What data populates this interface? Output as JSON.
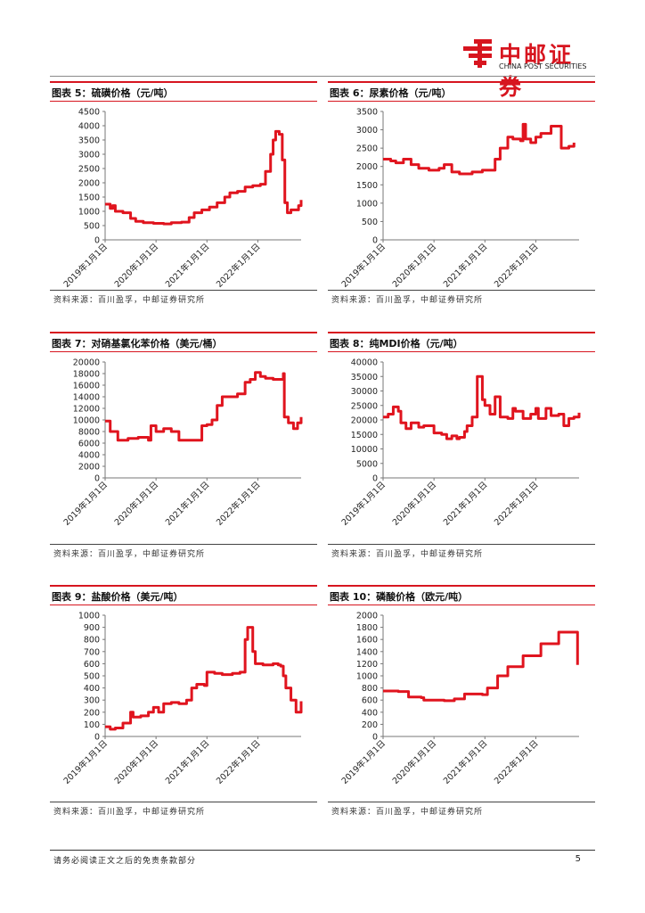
{
  "header": {
    "logo_cn": "中邮证券",
    "logo_en": "CHINA POST SECURITIES",
    "brand_color": "#d7151f"
  },
  "footer": {
    "disclaimer": "请务必阅读正文之后的免责条款部分",
    "page_number": "5"
  },
  "line_color": "#e0141e",
  "charts": [
    {
      "title": "图表 5：硫磺价格（元/吨）",
      "source": "资料来源：百川盈孚，中邮证券研究所",
      "chart_data": {
        "type": "line",
        "ylim": [
          0,
          4500
        ],
        "yticks": [
          0,
          500,
          1000,
          1500,
          2000,
          2500,
          3000,
          3500,
          4000,
          4500
        ],
        "xlim": [
          2019.0,
          2022.85
        ],
        "xticks": [
          2019.0,
          2020.0,
          2021.0,
          2022.0
        ],
        "xtick_labels": [
          "2019年1月1日",
          "2020年1月1日",
          "2021年1月1日",
          "2022年1月1日"
        ],
        "x": [
          2019.0,
          2019.1,
          2019.15,
          2019.2,
          2019.35,
          2019.5,
          2019.6,
          2019.75,
          2019.95,
          2020.15,
          2020.3,
          2020.5,
          2020.65,
          2020.75,
          2020.9,
          2021.05,
          2021.2,
          2021.35,
          2021.45,
          2021.6,
          2021.75,
          2021.9,
          2022.05,
          2022.15,
          2022.25,
          2022.3,
          2022.35,
          2022.42,
          2022.48,
          2022.53,
          2022.58,
          2022.65,
          2022.8,
          2022.85
        ],
        "y": [
          1250,
          1100,
          1200,
          1000,
          950,
          750,
          650,
          600,
          580,
          560,
          600,
          620,
          780,
          950,
          1050,
          1150,
          1300,
          1500,
          1650,
          1700,
          1850,
          1900,
          1950,
          2400,
          3000,
          3500,
          3800,
          3700,
          2800,
          1300,
          950,
          1050,
          1200,
          1400
        ]
      }
    },
    {
      "title": "图表 6：尿素价格（元/吨）",
      "source": "资料来源：百川盈孚，中邮证券研究所",
      "chart_data": {
        "type": "line",
        "ylim": [
          0,
          3500
        ],
        "yticks": [
          0,
          500,
          1000,
          1500,
          2000,
          2500,
          3000,
          3500
        ],
        "xlim": [
          2019.0,
          2022.85
        ],
        "xticks": [
          2019.0,
          2020.0,
          2021.0,
          2022.0
        ],
        "xtick_labels": [
          "2019年1月1日",
          "2020年1月1日",
          "2021年1月1日",
          "2022年1月1日"
        ],
        "x": [
          2019.0,
          2019.15,
          2019.25,
          2019.4,
          2019.55,
          2019.7,
          2019.9,
          2020.1,
          2020.2,
          2020.35,
          2020.5,
          2020.75,
          2020.95,
          2021.1,
          2021.2,
          2021.3,
          2021.45,
          2021.55,
          2021.7,
          2021.75,
          2021.8,
          2021.9,
          2022.0,
          2022.1,
          2022.3,
          2022.45,
          2022.5,
          2022.65,
          2022.75
        ],
        "y": [
          2200,
          2150,
          2100,
          2200,
          2050,
          1950,
          1900,
          1950,
          2050,
          1850,
          1800,
          1850,
          1900,
          1900,
          2200,
          2500,
          2800,
          2750,
          2700,
          3150,
          2750,
          2650,
          2800,
          2900,
          3100,
          3100,
          2500,
          2550,
          2650
        ]
      }
    },
    {
      "title": "图表 7：对硝基氯化苯价格（美元/桶）",
      "source": "资料来源：百川盈孚，中邮证券研究所",
      "chart_data": {
        "type": "line",
        "ylim": [
          0,
          20000
        ],
        "yticks": [
          0,
          2000,
          4000,
          6000,
          8000,
          10000,
          12000,
          14000,
          16000,
          18000,
          20000
        ],
        "xlim": [
          2019.0,
          2022.85
        ],
        "xticks": [
          2019.0,
          2020.0,
          2021.0,
          2022.0
        ],
        "xtick_labels": [
          "2019年1月1日",
          "2020年1月1日",
          "2021年1月1日",
          "2022年1月1日"
        ],
        "x": [
          2019.0,
          2019.1,
          2019.25,
          2019.45,
          2019.65,
          2019.85,
          2019.9,
          2020.0,
          2020.15,
          2020.3,
          2020.45,
          2020.55,
          2020.75,
          2020.9,
          2021.0,
          2021.1,
          2021.2,
          2021.3,
          2021.5,
          2021.6,
          2021.75,
          2021.85,
          2021.95,
          2022.05,
          2022.15,
          2022.3,
          2022.45,
          2022.5,
          2022.52,
          2022.6,
          2022.7,
          2022.78,
          2022.85
        ],
        "y": [
          9800,
          8000,
          6500,
          6800,
          7000,
          6500,
          9000,
          8000,
          8500,
          8000,
          6500,
          6500,
          6500,
          9000,
          9200,
          10000,
          12500,
          14000,
          14000,
          14500,
          16500,
          17000,
          18200,
          17500,
          17200,
          17000,
          17000,
          18000,
          10500,
          9500,
          8500,
          9500,
          10500
        ]
      }
    },
    {
      "title": "图表 8：纯MDI价格（元/吨）",
      "source": "资料来源：百川盈孚，中邮证券研究所",
      "chart_data": {
        "type": "line",
        "ylim": [
          0,
          40000
        ],
        "yticks": [
          0,
          5000,
          10000,
          15000,
          20000,
          25000,
          30000,
          35000,
          40000
        ],
        "xlim": [
          2019.0,
          2022.85
        ],
        "xticks": [
          2019.0,
          2020.0,
          2021.0,
          2022.0
        ],
        "xtick_labels": [
          "2019年1月1日",
          "2020年1月1日",
          "2021年1月1日",
          "2022年1月1日"
        ],
        "x": [
          2019.0,
          2019.1,
          2019.2,
          2019.3,
          2019.35,
          2019.45,
          2019.55,
          2019.7,
          2019.8,
          2020.0,
          2020.15,
          2020.25,
          2020.35,
          2020.45,
          2020.5,
          2020.6,
          2020.65,
          2020.75,
          2020.85,
          2020.95,
          2021.0,
          2021.1,
          2021.2,
          2021.3,
          2021.45,
          2021.55,
          2021.6,
          2021.75,
          2021.9,
          2022.0,
          2022.05,
          2022.2,
          2022.3,
          2022.45,
          2022.55,
          2022.65,
          2022.75,
          2022.85
        ],
        "y": [
          21000,
          22000,
          24500,
          23000,
          19000,
          17000,
          19000,
          17500,
          18000,
          15500,
          15000,
          13500,
          14500,
          13500,
          14000,
          16000,
          18000,
          21000,
          35000,
          27000,
          25000,
          22000,
          28000,
          21000,
          20500,
          24000,
          23000,
          20500,
          22000,
          24000,
          20500,
          24000,
          21500,
          22000,
          18000,
          20500,
          21000,
          22500
        ]
      }
    },
    {
      "title": "图表 9：盐酸价格（美元/吨）",
      "source": "资料来源：百川盈孚，中邮证券研究所",
      "chart_data": {
        "type": "line",
        "ylim": [
          0,
          1000
        ],
        "yticks": [
          0,
          100,
          200,
          300,
          400,
          500,
          600,
          700,
          800,
          900,
          1000
        ],
        "xlim": [
          2019.0,
          2022.85
        ],
        "xticks": [
          2019.0,
          2020.0,
          2021.0,
          2022.0
        ],
        "xtick_labels": [
          "2019年1月1日",
          "2020年1月1日",
          "2021年1月1日",
          "2022年1月1日"
        ],
        "x": [
          2019.0,
          2019.1,
          2019.2,
          2019.35,
          2019.5,
          2019.55,
          2019.7,
          2019.85,
          2019.95,
          2020.05,
          2020.15,
          2020.3,
          2020.45,
          2020.6,
          2020.7,
          2020.8,
          2020.95,
          2021.0,
          2021.15,
          2021.3,
          2021.5,
          2021.65,
          2021.75,
          2021.8,
          2021.9,
          2021.95,
          2022.1,
          2022.3,
          2022.4,
          2022.45,
          2022.5,
          2022.55,
          2022.65,
          2022.75,
          2022.85
        ],
        "y": [
          80,
          60,
          70,
          110,
          200,
          160,
          170,
          200,
          240,
          200,
          270,
          280,
          270,
          300,
          400,
          430,
          420,
          530,
          520,
          510,
          520,
          530,
          800,
          900,
          700,
          600,
          590,
          600,
          590,
          580,
          500,
          400,
          300,
          200,
          290
        ]
      }
    },
    {
      "title": "图表 10：磷酸价格（欧元/吨）",
      "source": "资料来源：百川盈孚，中邮证券研究所",
      "chart_data": {
        "type": "line",
        "ylim": [
          0,
          2000
        ],
        "yticks": [
          0,
          200,
          400,
          600,
          800,
          1000,
          1200,
          1400,
          1600,
          1800,
          2000
        ],
        "xlim": [
          2019.0,
          2022.85
        ],
        "xticks": [
          2019.0,
          2020.0,
          2021.0,
          2022.0
        ],
        "xtick_labels": [
          "2019年1月1日",
          "2020年1月1日",
          "2021年1月1日",
          "2022年1月1日"
        ],
        "x": [
          2019.0,
          2019.3,
          2019.5,
          2019.75,
          2019.8,
          2020.2,
          2020.4,
          2020.6,
          2020.95,
          2021.05,
          2021.25,
          2021.45,
          2021.75,
          2022.1,
          2022.45,
          2022.8,
          2022.82
        ],
        "y": [
          750,
          740,
          650,
          640,
          600,
          590,
          620,
          700,
          690,
          800,
          1000,
          1150,
          1330,
          1530,
          1720,
          1720,
          1180
        ]
      }
    }
  ]
}
